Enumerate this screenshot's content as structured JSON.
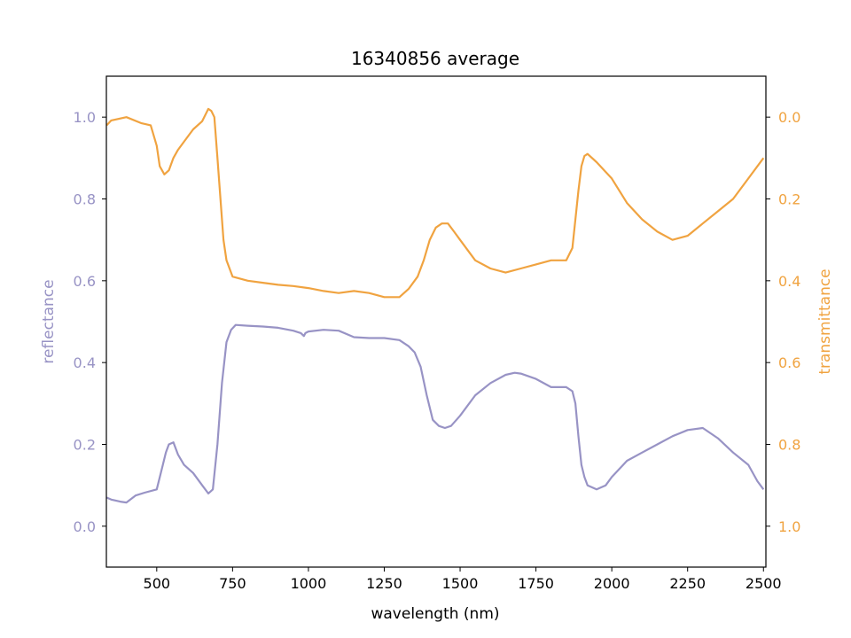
{
  "chart_data": {
    "type": "line",
    "title": "16340856 average",
    "xlabel": "wavelength (nm)",
    "ylabel_left": "reflectance",
    "ylabel_right": "transmittance",
    "xlim": [
      334,
      2508
    ],
    "ylim_left": [
      -0.1,
      1.1
    ],
    "ylim_right": [
      1.1,
      -0.1
    ],
    "right_axis_inverted": true,
    "grid": false,
    "x_ticks": [
      500,
      750,
      1000,
      1250,
      1500,
      1750,
      2000,
      2250,
      2500
    ],
    "x_tick_labels": [
      "500",
      "750",
      "1000",
      "1250",
      "1500",
      "1750",
      "2000",
      "2250",
      "2500"
    ],
    "y_left_ticks": [
      0.0,
      0.2,
      0.4,
      0.6,
      0.8,
      1.0
    ],
    "y_left_tick_labels": [
      "0.0",
      "0.2",
      "0.4",
      "0.6",
      "0.8",
      "1.0"
    ],
    "y_right_ticks": [
      0.0,
      0.2,
      0.4,
      0.6,
      0.8,
      1.0
    ],
    "y_right_tick_labels": [
      "0.0",
      "0.2",
      "0.4",
      "0.6",
      "0.8",
      "1.0"
    ],
    "colors": {
      "reflectance": "#9893c5",
      "transmittance": "#f0a340",
      "axes": "#000000"
    },
    "series": [
      {
        "key": "reflectance",
        "axis": "left",
        "x": [
          335,
          350,
          380,
          400,
          430,
          460,
          500,
          520,
          530,
          540,
          555,
          570,
          590,
          620,
          650,
          670,
          685,
          700,
          715,
          730,
          745,
          760,
          800,
          850,
          900,
          950,
          975,
          985,
          990,
          1000,
          1050,
          1100,
          1150,
          1200,
          1250,
          1300,
          1330,
          1350,
          1370,
          1390,
          1410,
          1430,
          1450,
          1470,
          1500,
          1550,
          1600,
          1650,
          1680,
          1700,
          1750,
          1800,
          1850,
          1870,
          1880,
          1890,
          1900,
          1910,
          1920,
          1950,
          1980,
          2000,
          2050,
          2100,
          2150,
          2200,
          2250,
          2300,
          2350,
          2400,
          2450,
          2480,
          2500
        ],
        "y": [
          0.07,
          0.065,
          0.06,
          0.058,
          0.075,
          0.082,
          0.09,
          0.15,
          0.18,
          0.2,
          0.205,
          0.175,
          0.15,
          0.13,
          0.1,
          0.08,
          0.09,
          0.2,
          0.35,
          0.45,
          0.48,
          0.492,
          0.49,
          0.488,
          0.485,
          0.478,
          0.472,
          0.465,
          0.472,
          0.476,
          0.48,
          0.478,
          0.462,
          0.46,
          0.46,
          0.455,
          0.44,
          0.425,
          0.39,
          0.32,
          0.26,
          0.245,
          0.24,
          0.245,
          0.27,
          0.32,
          0.35,
          0.37,
          0.375,
          0.373,
          0.36,
          0.34,
          0.34,
          0.33,
          0.3,
          0.22,
          0.15,
          0.12,
          0.1,
          0.09,
          0.1,
          0.12,
          0.16,
          0.18,
          0.2,
          0.22,
          0.235,
          0.24,
          0.215,
          0.18,
          0.15,
          0.11,
          0.09
        ]
      },
      {
        "key": "transmittance",
        "axis": "right",
        "x": [
          335,
          350,
          400,
          450,
          480,
          500,
          510,
          525,
          540,
          555,
          570,
          590,
          620,
          650,
          670,
          680,
          690,
          700,
          710,
          720,
          730,
          750,
          800,
          850,
          900,
          950,
          1000,
          1050,
          1100,
          1150,
          1200,
          1250,
          1300,
          1330,
          1360,
          1380,
          1400,
          1420,
          1440,
          1460,
          1480,
          1500,
          1550,
          1600,
          1650,
          1700,
          1750,
          1800,
          1850,
          1870,
          1880,
          1890,
          1900,
          1910,
          1920,
          1950,
          2000,
          2050,
          2100,
          2150,
          2200,
          2250,
          2300,
          2350,
          2400,
          2450,
          2500
        ],
        "y": [
          0.02,
          0.008,
          0.0,
          0.015,
          0.02,
          0.07,
          0.12,
          0.14,
          0.13,
          0.1,
          0.08,
          0.06,
          0.03,
          0.01,
          -0.02,
          -0.015,
          0.0,
          0.1,
          0.2,
          0.3,
          0.35,
          0.39,
          0.4,
          0.405,
          0.41,
          0.413,
          0.418,
          0.425,
          0.43,
          0.425,
          0.43,
          0.44,
          0.44,
          0.42,
          0.39,
          0.35,
          0.3,
          0.27,
          0.26,
          0.26,
          0.28,
          0.3,
          0.35,
          0.37,
          0.38,
          0.37,
          0.36,
          0.35,
          0.35,
          0.32,
          0.25,
          0.18,
          0.12,
          0.095,
          0.09,
          0.11,
          0.15,
          0.21,
          0.25,
          0.28,
          0.3,
          0.29,
          0.26,
          0.23,
          0.2,
          0.15,
          0.1
        ]
      }
    ]
  }
}
